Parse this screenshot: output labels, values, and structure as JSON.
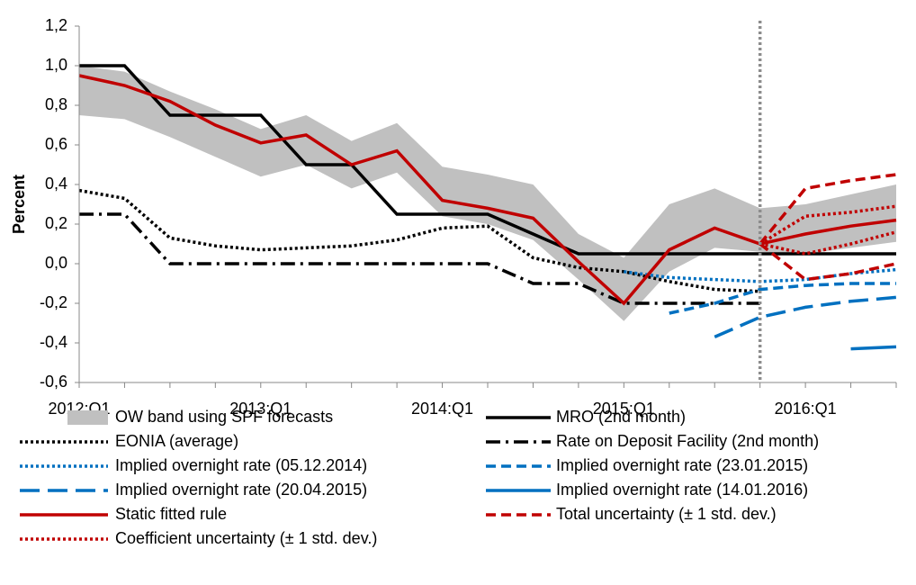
{
  "chart_data": {
    "type": "line",
    "y_label": "Percent",
    "categories": [
      "2012:Q1",
      null,
      null,
      null,
      "2013:Q1",
      null,
      null,
      null,
      "2014:Q1",
      null,
      null,
      null,
      "2015:Q1",
      null,
      null,
      null,
      "2016:Q1",
      null,
      null
    ],
    "ylim": [
      -0.6,
      1.2
    ],
    "yticks": [
      {
        "value": -0.6,
        "label": "-0,6"
      },
      {
        "value": -0.4,
        "label": "-0,4"
      },
      {
        "value": -0.2,
        "label": "-0,2"
      },
      {
        "value": 0,
        "label": "0,0"
      },
      {
        "value": 0.2,
        "label": "0,2"
      },
      {
        "value": 0.4,
        "label": "0,4"
      },
      {
        "value": 0.6,
        "label": "0,6"
      },
      {
        "value": 0.8,
        "label": "0,8"
      },
      {
        "value": 1.0,
        "label": "1,0"
      },
      {
        "value": 1.2,
        "label": "1,2"
      }
    ],
    "vertical_line_at": 15,
    "series": [
      {
        "name": "OW band using SPF forecasts",
        "color": "#c0c0c0",
        "style": "area",
        "upper": [
          1.0,
          0.97,
          0.87,
          0.78,
          0.68,
          0.75,
          0.62,
          0.71,
          0.49,
          0.45,
          0.4,
          0.15,
          0.03,
          0.3,
          0.38,
          0.28,
          0.3,
          0.35,
          0.4
        ],
        "lower": [
          0.75,
          0.73,
          0.64,
          0.54,
          0.44,
          0.5,
          0.38,
          0.46,
          0.24,
          0.2,
          0.12,
          -0.08,
          -0.29,
          -0.04,
          0.08,
          0.06,
          0.05,
          0.08,
          0.11
        ]
      },
      {
        "name": "MRO (2nd month)",
        "color": "#000000",
        "style": "solid",
        "values": [
          1.0,
          1.0,
          0.75,
          0.75,
          0.75,
          0.5,
          0.5,
          0.25,
          0.25,
          0.25,
          0.15,
          0.05,
          0.05,
          0.05,
          0.05,
          0.05,
          0.05,
          0.05,
          0.05
        ]
      },
      {
        "name": "EONIA (average)",
        "color": "#000000",
        "style": "dotted",
        "values": [
          0.37,
          0.33,
          0.13,
          0.09,
          0.07,
          0.08,
          0.09,
          0.12,
          0.18,
          0.19,
          0.03,
          -0.02,
          -0.04,
          -0.09,
          -0.13,
          -0.14,
          null,
          null,
          null
        ]
      },
      {
        "name": "Rate on Deposit Facility (2nd month)",
        "color": "#000000",
        "style": "dashdot",
        "values": [
          0.25,
          0.25,
          0,
          0,
          0,
          0,
          0,
          0,
          0,
          0,
          -0.1,
          -0.1,
          -0.2,
          -0.2,
          -0.2,
          -0.2,
          null,
          null,
          null
        ]
      },
      {
        "name": "Implied overnight rate (05.12.2014)",
        "color": "#0070c0",
        "style": "dotted",
        "values": [
          null,
          null,
          null,
          null,
          null,
          null,
          null,
          null,
          null,
          null,
          null,
          null,
          -0.04,
          -0.07,
          -0.08,
          -0.09,
          -0.08,
          -0.05,
          -0.03
        ]
      },
      {
        "name": "Implied overnight rate (23.01.2015)",
        "color": "#0070c0",
        "style": "dash",
        "values": [
          null,
          null,
          null,
          null,
          null,
          null,
          null,
          null,
          null,
          null,
          null,
          null,
          null,
          -0.25,
          -0.2,
          -0.13,
          -0.11,
          -0.1,
          -0.1
        ]
      },
      {
        "name": "Implied overnight rate (20.04.2015)",
        "color": "#0070c0",
        "style": "longdash",
        "values": [
          null,
          null,
          null,
          null,
          null,
          null,
          null,
          null,
          null,
          null,
          null,
          null,
          null,
          null,
          -0.37,
          -0.27,
          -0.22,
          -0.19,
          -0.17
        ]
      },
      {
        "name": "Implied overnight rate (14.01.2016)",
        "color": "#0070c0",
        "style": "solid",
        "values": [
          null,
          null,
          null,
          null,
          null,
          null,
          null,
          null,
          null,
          null,
          null,
          null,
          null,
          null,
          null,
          null,
          null,
          -0.43,
          -0.42
        ]
      },
      {
        "name": "Static fitted rule",
        "color": "#c00000",
        "style": "solid",
        "values": [
          0.95,
          0.9,
          0.82,
          0.7,
          0.61,
          0.65,
          0.5,
          0.57,
          0.32,
          0.28,
          0.23,
          0.01,
          -0.2,
          0.07,
          0.18,
          0.1,
          0.15,
          0.19,
          0.22
        ]
      },
      {
        "name": "Total uncertainty (± 1 std. dev.)",
        "color": "#c00000",
        "style": "dash",
        "upper": [
          null,
          null,
          null,
          null,
          null,
          null,
          null,
          null,
          null,
          null,
          null,
          null,
          null,
          null,
          null,
          0.1,
          0.38,
          0.42,
          0.45
        ],
        "lower": [
          null,
          null,
          null,
          null,
          null,
          null,
          null,
          null,
          null,
          null,
          null,
          null,
          null,
          null,
          null,
          0.1,
          -0.08,
          -0.05,
          0.0
        ]
      },
      {
        "name": "Coefficient uncertainty (± 1 std. dev.)",
        "color": "#c00000",
        "style": "dotted",
        "upper": [
          null,
          null,
          null,
          null,
          null,
          null,
          null,
          null,
          null,
          null,
          null,
          null,
          null,
          null,
          null,
          0.1,
          0.24,
          0.26,
          0.29
        ],
        "lower": [
          null,
          null,
          null,
          null,
          null,
          null,
          null,
          null,
          null,
          null,
          null,
          null,
          null,
          null,
          null,
          0.1,
          0.05,
          0.1,
          0.16
        ]
      }
    ]
  }
}
